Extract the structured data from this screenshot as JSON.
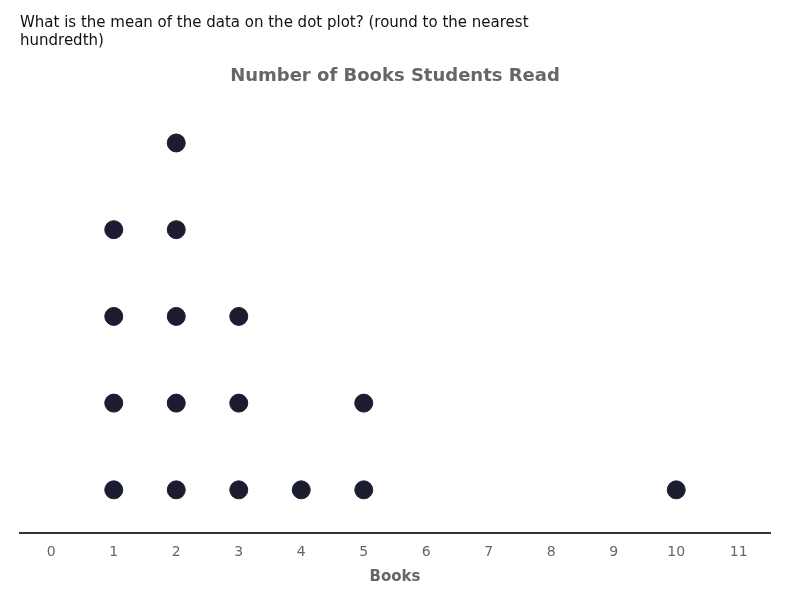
{
  "chart_data": {
    "type": "dot",
    "title": "Number of Books Students Read",
    "subtitle": "What is the mean of the data on the dot plot? (round to the nearest\nhundredth)",
    "xlabel": "Books",
    "x": [
      1,
      2,
      3,
      4,
      5,
      10
    ],
    "values": [
      4,
      5,
      3,
      1,
      2,
      1
    ],
    "color": "#1c1c30",
    "xlim": [
      -0.5,
      11.5
    ],
    "xticks": [
      0,
      1,
      2,
      3,
      4,
      5,
      6,
      7,
      8,
      9,
      10,
      11
    ],
    "grid": false,
    "tick_labels": "x"
  }
}
